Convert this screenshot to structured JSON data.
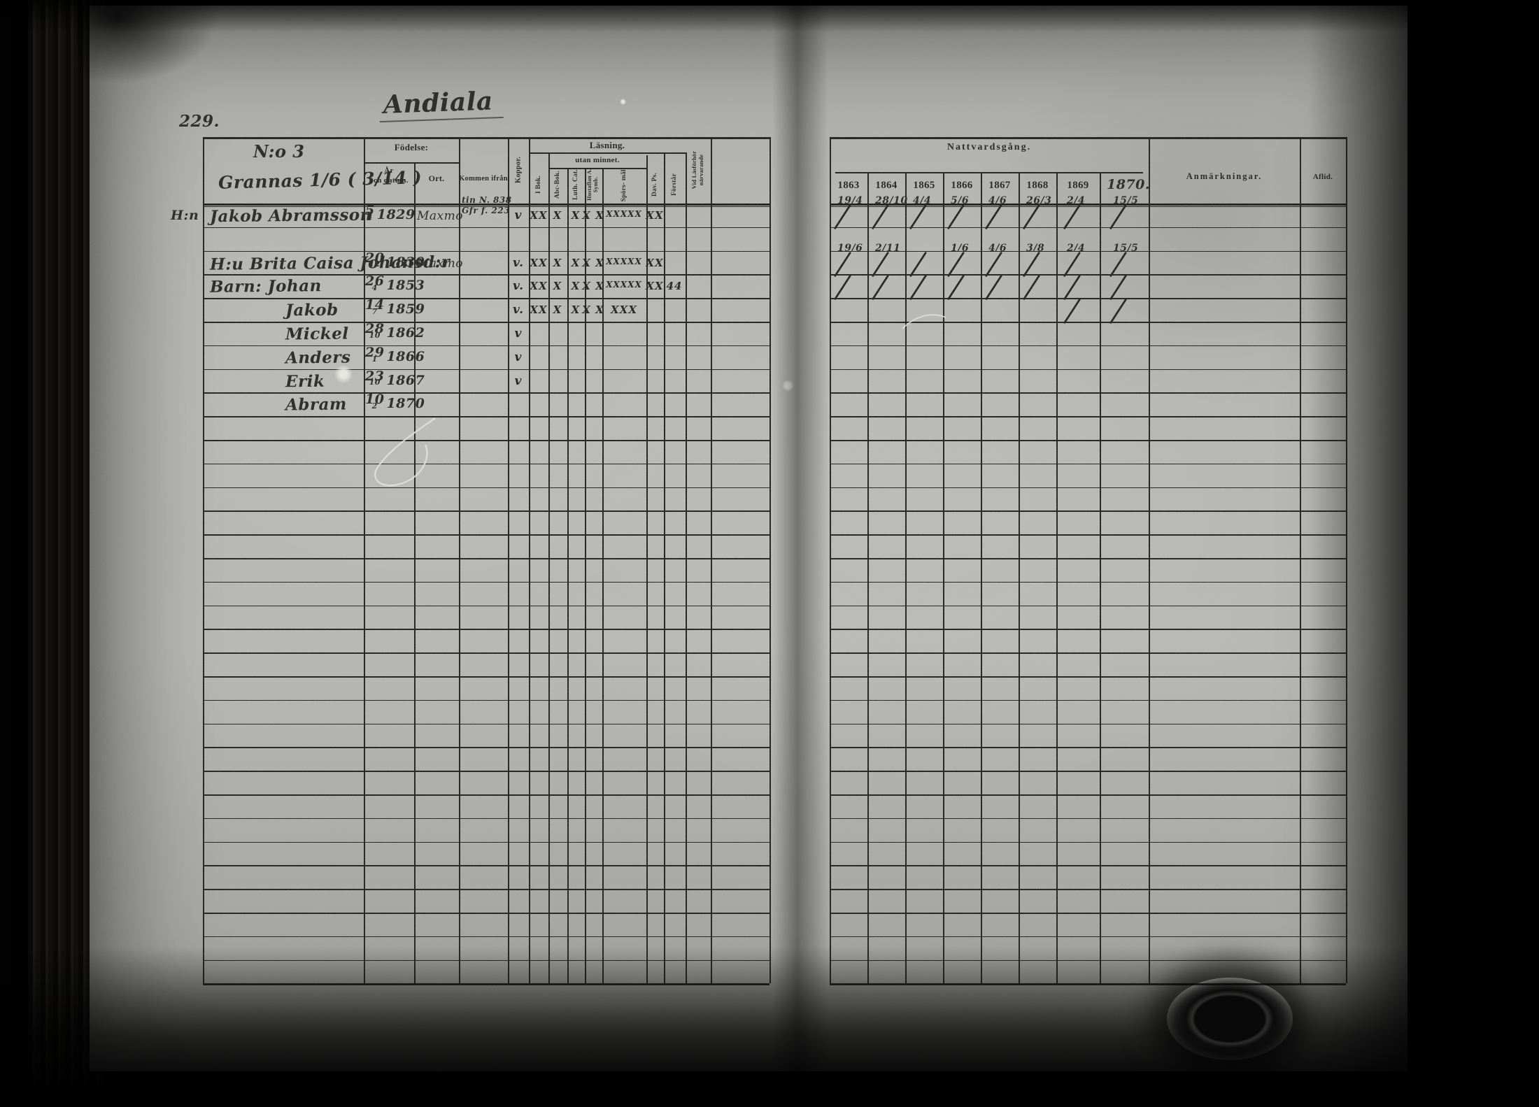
{
  "page": {
    "number": "229.",
    "title": "Andiala"
  },
  "table": {
    "headers": {
      "no": "N:o 3",
      "estate": "Grannas 1/6 ( 3/14 )",
      "birth": "Födelse:",
      "birth_year": "År",
      "birth_date": "och datum.",
      "birth_place": "Ort.",
      "come_from": "Kommen ifrån",
      "koppor": "Koppor.",
      "lasning": "Läsning.",
      "utan_minnet": "utan minnet.",
      "reading_cols": [
        "I Bok.",
        "Abc-Bok.",
        "Luth. Cat.",
        "Hustaflan A. Symb.",
        "Spörs- mål.",
        "Dav. Ps.",
        "Förstår"
      ],
      "vid_lasforhor": "Vid Läsförhör närvarande",
      "nattvardsgang": "Nattvardsgång.",
      "years": [
        "1863",
        "1864",
        "1865",
        "1866",
        "1867",
        "1868",
        "1869"
      ],
      "year_extra": "1870.",
      "anmarkningar": "Anmärkningar.",
      "aflid": "Aflid."
    },
    "rows": [
      {
        "row": 0,
        "marker": "H:n",
        "name": "Jakob Abramsson",
        "b_day": "5",
        "b_mon": "4",
        "b_year": "1829",
        "ort": "Maxmo",
        "from_note": [
          "tin N. 838",
          "Gfr f. 223"
        ],
        "koppor": "v",
        "reading": [
          "XX",
          "X",
          "X",
          "X X",
          "XXXXX",
          "XX",
          ""
        ],
        "communion": [
          {
            "d": "19/4",
            "s": true
          },
          {
            "d": "28/10",
            "s": true
          },
          {
            "d": "4/4",
            "s": true
          },
          {
            "d": "5/6",
            "s": true
          },
          {
            "d": "4/6",
            "s": true
          },
          {
            "d": "26/3",
            "s": true
          },
          {
            "d": "2/4",
            "s": true
          },
          {
            "d": "15/5",
            "s": true
          }
        ]
      },
      {
        "row": 2,
        "marker": "",
        "name": "H:u Brita Caisa Johansd:r",
        "b_day": "20",
        "b_mon": "12",
        "b_year": "1830",
        "ort": "Maxmo",
        "from_note": [],
        "koppor": "v.",
        "reading": [
          "XX",
          "X",
          "X",
          "X X",
          "XXXXX",
          "XX",
          ""
        ],
        "communion": [
          {
            "d": "19/6",
            "s": true
          },
          {
            "d": "2/11",
            "s": true
          },
          {
            "d": "",
            "s": true
          },
          {
            "d": "1/6",
            "s": true
          },
          {
            "d": "4/6",
            "s": true
          },
          {
            "d": "3/8",
            "s": true
          },
          {
            "d": "2/4",
            "s": true
          },
          {
            "d": "15/5",
            "s": true
          }
        ]
      },
      {
        "row": 3,
        "marker": "",
        "name": "Barn: Johan",
        "b_day": "26",
        "b_mon": "4",
        "b_year": "1853",
        "ort": "",
        "from_note": [],
        "koppor": "v.",
        "reading": [
          "XX",
          "X",
          "X",
          "X X",
          "XXXXX",
          "XX",
          "44"
        ],
        "communion": [
          {
            "d": "",
            "s": true
          },
          {
            "d": "",
            "s": true
          },
          {
            "d": "",
            "s": true
          },
          {
            "d": "",
            "s": true
          },
          {
            "d": "",
            "s": true
          },
          {
            "d": "",
            "s": true
          },
          {
            "d": "",
            "s": true
          },
          {
            "d": "",
            "s": true
          }
        ]
      },
      {
        "row": 4,
        "marker": "",
        "name": "Jakob",
        "indent": true,
        "b_day": "14",
        "b_mon": "7",
        "b_year": "1859",
        "ort": "",
        "from_note": [],
        "koppor": "v.",
        "reading": [
          "XX",
          "X",
          "X",
          "X X",
          "XXX",
          "",
          ""
        ],
        "communion": [
          {},
          {},
          {},
          {},
          {},
          {},
          {
            "d": "",
            "s": true
          },
          {
            "d": "",
            "s": true
          }
        ]
      },
      {
        "row": 5,
        "marker": "",
        "name": "Mickel",
        "indent": true,
        "b_day": "28",
        "b_mon": "10",
        "b_year": "1862",
        "ort": "",
        "from_note": [],
        "koppor": "v",
        "reading": [],
        "communion": []
      },
      {
        "row": 6,
        "marker": "",
        "name": "Anders",
        "indent": true,
        "b_day": "29",
        "b_mon": "1",
        "b_year": "1866",
        "ort": "",
        "from_note": [],
        "koppor": "v",
        "reading": [],
        "communion": []
      },
      {
        "row": 7,
        "marker": "",
        "name": "Erik",
        "indent": true,
        "b_day": "23",
        "b_mon": "10",
        "b_year": "1867",
        "ort": "",
        "from_note": [],
        "koppor": "v",
        "reading": [],
        "communion": []
      },
      {
        "row": 8,
        "marker": "",
        "name": "Abram",
        "indent": true,
        "b_day": "10",
        "b_mon": "2",
        "b_year": "1870",
        "ort": "",
        "from_note": [],
        "koppor": "",
        "reading": [],
        "communion": []
      }
    ]
  }
}
